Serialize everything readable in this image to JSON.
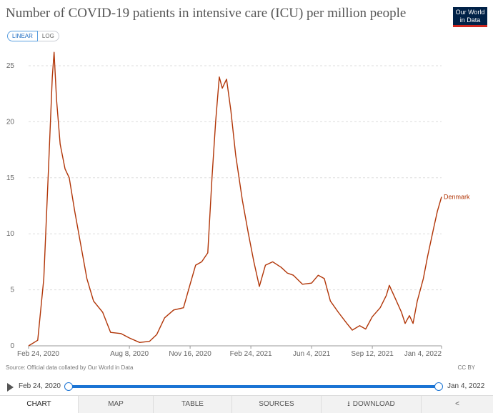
{
  "header": {
    "title": "Number of COVID-19 patients in intensive care (ICU) per million people",
    "logo_line1": "Our World",
    "logo_line2": "in Data"
  },
  "scale_toggle": {
    "linear": "LINEAR",
    "log": "LOG",
    "selected": "LINEAR"
  },
  "chart_data": {
    "type": "line",
    "title": "Number of COVID-19 patients in intensive care (ICU) per million people",
    "xlabel": "",
    "ylabel": "",
    "ylim": [
      0,
      25
    ],
    "yticks": [
      0,
      5,
      10,
      15,
      20,
      25
    ],
    "xticks": [
      "Feb 24, 2020",
      "Aug 8, 2020",
      "Nov 16, 2020",
      "Feb 24, 2021",
      "Jun 4, 2021",
      "Sep 12, 2021",
      "Jan 4, 2022"
    ],
    "grid": true,
    "series": [
      {
        "name": "Denmark",
        "color": "#b13507",
        "points": [
          [
            "2020-02-24",
            0
          ],
          [
            "2020-03-10",
            0.5
          ],
          [
            "2020-03-20",
            6
          ],
          [
            "2020-03-28",
            16
          ],
          [
            "2020-04-03",
            24
          ],
          [
            "2020-04-06",
            26.2
          ],
          [
            "2020-04-10",
            22
          ],
          [
            "2020-04-16",
            18
          ],
          [
            "2020-04-24",
            15.8
          ],
          [
            "2020-05-01",
            15
          ],
          [
            "2020-05-10",
            12
          ],
          [
            "2020-05-20",
            9
          ],
          [
            "2020-05-30",
            6
          ],
          [
            "2020-06-10",
            4
          ],
          [
            "2020-06-25",
            3
          ],
          [
            "2020-07-08",
            1.2
          ],
          [
            "2020-07-25",
            1.1
          ],
          [
            "2020-08-08",
            0.7
          ],
          [
            "2020-08-25",
            0.3
          ],
          [
            "2020-09-10",
            0.4
          ],
          [
            "2020-09-22",
            1.0
          ],
          [
            "2020-10-05",
            2.5
          ],
          [
            "2020-10-20",
            3.2
          ],
          [
            "2020-11-05",
            3.4
          ],
          [
            "2020-11-16",
            5.5
          ],
          [
            "2020-11-25",
            7.2
          ],
          [
            "2020-12-05",
            7.5
          ],
          [
            "2020-12-15",
            8.3
          ],
          [
            "2020-12-22",
            15
          ],
          [
            "2020-12-28",
            20
          ],
          [
            "2021-01-03",
            24
          ],
          [
            "2021-01-08",
            23
          ],
          [
            "2021-01-15",
            23.8
          ],
          [
            "2021-01-22",
            21
          ],
          [
            "2021-01-30",
            17
          ],
          [
            "2021-02-10",
            13
          ],
          [
            "2021-02-20",
            10
          ],
          [
            "2021-03-01",
            7.5
          ],
          [
            "2021-03-10",
            5.3
          ],
          [
            "2021-03-20",
            7.2
          ],
          [
            "2021-04-01",
            7.5
          ],
          [
            "2021-04-15",
            7.0
          ],
          [
            "2021-04-25",
            6.5
          ],
          [
            "2021-05-05",
            6.3
          ],
          [
            "2021-05-20",
            5.5
          ],
          [
            "2021-06-04",
            5.6
          ],
          [
            "2021-06-15",
            6.3
          ],
          [
            "2021-06-25",
            6.0
          ],
          [
            "2021-07-05",
            4.0
          ],
          [
            "2021-07-18",
            3.0
          ],
          [
            "2021-08-01",
            2.0
          ],
          [
            "2021-08-10",
            1.4
          ],
          [
            "2021-08-22",
            1.8
          ],
          [
            "2021-09-01",
            1.5
          ],
          [
            "2021-09-12",
            2.6
          ],
          [
            "2021-09-25",
            3.4
          ],
          [
            "2021-10-05",
            4.5
          ],
          [
            "2021-10-10",
            5.4
          ],
          [
            "2021-10-20",
            4.2
          ],
          [
            "2021-10-30",
            3.0
          ],
          [
            "2021-11-05",
            2.0
          ],
          [
            "2021-11-12",
            2.7
          ],
          [
            "2021-11-18",
            2.0
          ],
          [
            "2021-11-25",
            4.0
          ],
          [
            "2021-12-05",
            6.0
          ],
          [
            "2021-12-12",
            8.0
          ],
          [
            "2021-12-22",
            10.5
          ],
          [
            "2021-12-28",
            12.0
          ],
          [
            "2022-01-04",
            13.3
          ]
        ]
      }
    ]
  },
  "footer": {
    "source": "Source: Official data collated by Our World in Data",
    "license": "CC BY"
  },
  "timeline": {
    "start": "Feb 24, 2020",
    "end": "Jan 4, 2022"
  },
  "tabs": [
    {
      "label": "CHART",
      "active": true
    },
    {
      "label": "MAP",
      "active": false
    },
    {
      "label": "TABLE",
      "active": false
    },
    {
      "label": "SOURCES",
      "active": false
    },
    {
      "label": "DOWNLOAD",
      "active": false
    }
  ]
}
